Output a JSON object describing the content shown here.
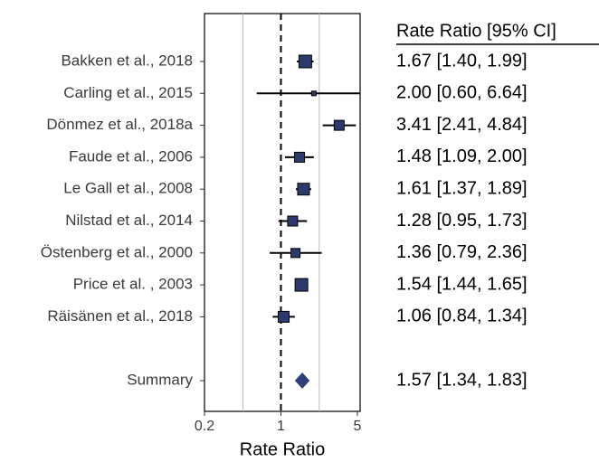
{
  "chart_data": {
    "type": "forest",
    "x_label": "Rate Ratio",
    "table_header": "Rate Ratio [95% CI]",
    "xscale": "log",
    "xlim": [
      0.2,
      5.3
    ],
    "xticks": [
      0.2,
      1,
      5
    ],
    "minor_grid": [
      0.45,
      2.24
    ],
    "reference_line": 1,
    "color": "#2b3a6b",
    "categories": [
      "Bakken et al., 2018",
      "Carling et al., 2015",
      "Dönmez et al., 2018a",
      "Faude et al., 2006",
      "Le Gall et al., 2008",
      "Nilstad et al., 2014",
      "Östenberg et al., 2000",
      "Price et al. , 2003",
      "Räisänen et al., 2018"
    ],
    "estimates": [
      1.67,
      2.0,
      3.41,
      1.48,
      1.61,
      1.28,
      1.36,
      1.54,
      1.06
    ],
    "lower": [
      1.4,
      0.6,
      2.41,
      1.09,
      1.37,
      0.95,
      0.79,
      1.44,
      0.84
    ],
    "upper": [
      1.99,
      6.64,
      4.84,
      2.0,
      1.89,
      1.73,
      2.36,
      1.65,
      1.34
    ],
    "value_labels": [
      "1.67 [1.40, 1.99]",
      "2.00 [0.60, 6.64]",
      "3.41 [2.41, 4.84]",
      "1.48 [1.09, 2.00]",
      "1.61 [1.37, 1.89]",
      "1.28 [0.95, 1.73]",
      "1.36 [0.79, 2.36]",
      "1.54 [1.44, 1.65]",
      "1.06 [0.84, 1.34]"
    ],
    "weights": [
      14,
      5,
      11,
      11,
      13,
      11,
      10,
      14,
      12
    ],
    "summary": {
      "name": "Summary",
      "estimate": 1.57,
      "lower": 1.34,
      "upper": 1.83,
      "value_label": "1.57 [1.34, 1.83]"
    }
  }
}
